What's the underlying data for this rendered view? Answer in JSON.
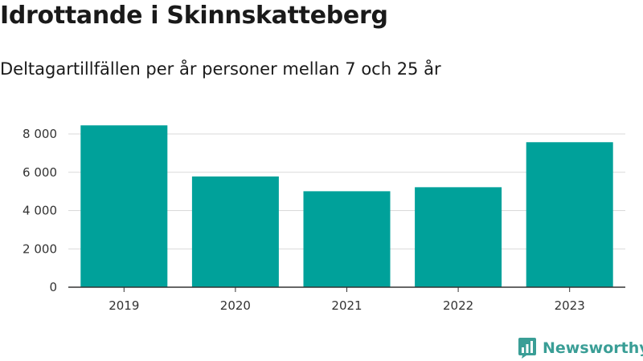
{
  "header": {
    "title": "Idrottande i Skinnskatteberg",
    "subtitle": "Deltagartillfällen per år personer mellan 7 och 25 år"
  },
  "brand": {
    "name": "Newsworthy",
    "icon": "newsworthy-logo-icon",
    "color": "#3a9e96"
  },
  "chart_data": {
    "type": "bar",
    "categories": [
      "2019",
      "2020",
      "2021",
      "2022",
      "2023"
    ],
    "values": [
      8450,
      5780,
      5010,
      5220,
      7570
    ],
    "ylim": [
      0,
      8000
    ],
    "yticks": [
      0,
      2000,
      4000,
      6000,
      8000
    ],
    "ytick_labels": [
      "0",
      "2 000",
      "4 000",
      "6 000",
      "8 000"
    ],
    "bar_color": "#00a19a",
    "grid": true,
    "legend": "none"
  }
}
